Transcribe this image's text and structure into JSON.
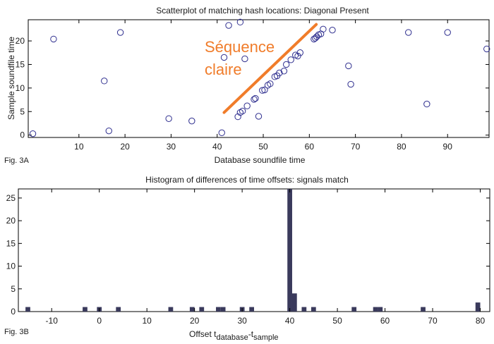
{
  "chart_data": [
    {
      "type": "scatter",
      "title": "Scatterplot of matching hash locations:  Diagonal Present",
      "xlabel": "Database soundfile time",
      "ylabel": "Sample soundfile time",
      "figure_label": "Fig. 3A",
      "xlim": [
        -1,
        99
      ],
      "ylim": [
        -0.5,
        24.5
      ],
      "xticks": [
        10,
        20,
        30,
        40,
        50,
        60,
        70,
        80,
        90
      ],
      "yticks": [
        0,
        5,
        10,
        15,
        20
      ],
      "grid": false,
      "marker_color": "#2f2f8f",
      "points": [
        {
          "x": 0,
          "y": 0.3
        },
        {
          "x": 4.5,
          "y": 20.4
        },
        {
          "x": 15.5,
          "y": 11.5
        },
        {
          "x": 16.5,
          "y": 0.9
        },
        {
          "x": 19,
          "y": 21.8
        },
        {
          "x": 29.5,
          "y": 3.5
        },
        {
          "x": 34.5,
          "y": 3.0
        },
        {
          "x": 41,
          "y": 0.5
        },
        {
          "x": 41.5,
          "y": 16.5
        },
        {
          "x": 42.5,
          "y": 23.3
        },
        {
          "x": 44.5,
          "y": 3.9
        },
        {
          "x": 45,
          "y": 24.0
        },
        {
          "x": 45,
          "y": 4.8
        },
        {
          "x": 45.5,
          "y": 5.1
        },
        {
          "x": 46,
          "y": 16.2
        },
        {
          "x": 46.5,
          "y": 6.2
        },
        {
          "x": 48,
          "y": 7.6
        },
        {
          "x": 48.3,
          "y": 7.8
        },
        {
          "x": 49,
          "y": 4.0
        },
        {
          "x": 49.8,
          "y": 9.5
        },
        {
          "x": 50.3,
          "y": 9.6
        },
        {
          "x": 51,
          "y": 10.6
        },
        {
          "x": 51.5,
          "y": 10.9
        },
        {
          "x": 52.5,
          "y": 12.4
        },
        {
          "x": 53,
          "y": 12.6
        },
        {
          "x": 53.5,
          "y": 13.2
        },
        {
          "x": 54.5,
          "y": 13.6
        },
        {
          "x": 55,
          "y": 15.0
        },
        {
          "x": 56,
          "y": 16.0
        },
        {
          "x": 57,
          "y": 17.0
        },
        {
          "x": 57.5,
          "y": 16.8
        },
        {
          "x": 58,
          "y": 17.5
        },
        {
          "x": 61,
          "y": 20.4
        },
        {
          "x": 61.3,
          "y": 20.6
        },
        {
          "x": 61.6,
          "y": 20.9
        },
        {
          "x": 62,
          "y": 21.3
        },
        {
          "x": 62.5,
          "y": 21.5
        },
        {
          "x": 63,
          "y": 22.5
        },
        {
          "x": 65,
          "y": 22.3
        },
        {
          "x": 68.5,
          "y": 14.7
        },
        {
          "x": 69,
          "y": 10.8
        },
        {
          "x": 81.5,
          "y": 21.8
        },
        {
          "x": 85.5,
          "y": 6.6
        },
        {
          "x": 90,
          "y": 21.8
        },
        {
          "x": 98.5,
          "y": 18.3
        }
      ],
      "overlay_line": {
        "x": [
          41.5,
          61.5
        ],
        "y": [
          4.8,
          23.5
        ],
        "color": "#f07c2a"
      },
      "annotation": {
        "line1": "Séquence",
        "line2": "claire",
        "color": "#f07c2a"
      }
    },
    {
      "type": "bar",
      "title": "Histogram of differences of time offsets: signals match",
      "xlabel_main": "Offset t",
      "xlabel_sub1": "database",
      "xlabel_mid": "-t",
      "xlabel_sub2": "sample",
      "figure_label": "Fig. 3B",
      "xlim": [
        -17,
        82
      ],
      "ylim": [
        0,
        27
      ],
      "xticks": [
        -10,
        0,
        10,
        20,
        30,
        40,
        50,
        60,
        70,
        80
      ],
      "yticks": [
        0,
        5,
        10,
        15,
        20,
        25
      ],
      "grid": false,
      "bar_color": "#3a3a5c",
      "bar_width": 1,
      "bars": [
        {
          "x": -15,
          "value": 1
        },
        {
          "x": -3,
          "value": 1
        },
        {
          "x": 0,
          "value": 1
        },
        {
          "x": 4,
          "value": 1
        },
        {
          "x": 15,
          "value": 1
        },
        {
          "x": 19.5,
          "value": 1
        },
        {
          "x": 21.5,
          "value": 1
        },
        {
          "x": 25,
          "value": 1
        },
        {
          "x": 26,
          "value": 1
        },
        {
          "x": 30,
          "value": 1
        },
        {
          "x": 32,
          "value": 1
        },
        {
          "x": 40,
          "value": 27
        },
        {
          "x": 41,
          "value": 4
        },
        {
          "x": 43,
          "value": 1
        },
        {
          "x": 45,
          "value": 1
        },
        {
          "x": 53.5,
          "value": 1
        },
        {
          "x": 58,
          "value": 1
        },
        {
          "x": 59,
          "value": 1
        },
        {
          "x": 68,
          "value": 1
        },
        {
          "x": 79.5,
          "value": 2
        }
      ]
    }
  ]
}
